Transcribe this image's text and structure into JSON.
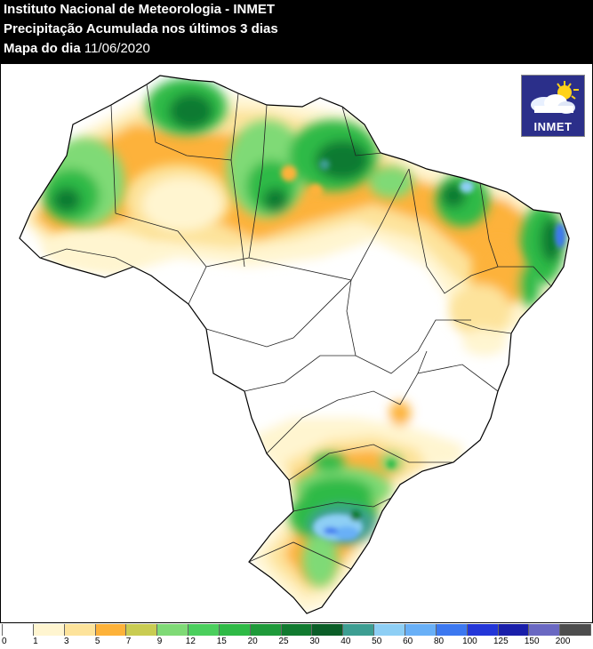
{
  "header": {
    "line1": "Instituto Nacional de Meteorologia - INMET",
    "line2": "Precipitação Acumulada nos últimos 3 dias",
    "line3_label": "Mapa do dia",
    "line3_date": "11/06/2020"
  },
  "logo": {
    "text": "INMET",
    "icon": "cloud-sun-icon"
  },
  "legend": {
    "labels": [
      "0",
      "1",
      "3",
      "5",
      "7",
      "9",
      "12",
      "15",
      "20",
      "25",
      "30",
      "40",
      "50",
      "60",
      "80",
      "100",
      "125",
      "150",
      "200"
    ],
    "colors": [
      "#ffffff",
      "#fff5d0",
      "#fde39b",
      "#fdb23a",
      "#c9cc52",
      "#7fda76",
      "#4bcf5d",
      "#2fba46",
      "#1f9a3a",
      "#117a30",
      "#0b5e28",
      "#3d9e92",
      "#8ecff5",
      "#69b0f7",
      "#3c78f0",
      "#2336d8",
      "#1a1faa",
      "#6a68c2",
      "#4d4d4d"
    ]
  },
  "map_colors": {
    "light_yellow": "#fff5d0",
    "yellow": "#fde39b",
    "orange": "#fdb23a",
    "green_light": "#7fda76",
    "green": "#2fba46",
    "green_dark": "#117a30",
    "teal": "#3d9e92",
    "blue_light": "#8ecff5",
    "blue": "#3c78f0"
  }
}
